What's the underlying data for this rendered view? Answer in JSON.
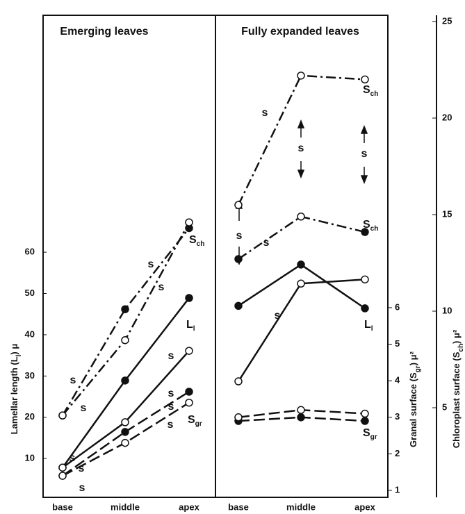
{
  "chart_data": [
    {
      "type": "line",
      "title": "Emerging leaves",
      "categories": [
        "base",
        "middle",
        "apex"
      ],
      "ylim": [
        0.6,
        115.9
      ],
      "yticks": [
        10,
        20,
        30,
        40,
        50,
        60
      ],
      "ylabel": [
        "Lamellar length (L",
        "l",
        ")  μ"
      ],
      "series": [
        {
          "label": [
            "S",
            "ch"
          ],
          "axis": "y3",
          "style": "dashdot",
          "color": "#111",
          "filled": [
            true,
            true,
            true
          ],
          "values": [
            4.6,
            10.1,
            14.3
          ]
        },
        {
          "axis": "y3",
          "style": "dashdot",
          "color": "#111",
          "filled": [
            false,
            false,
            false
          ],
          "values": [
            4.6,
            8.5,
            14.6
          ]
        },
        {
          "label": [
            "L",
            "l"
          ],
          "axis": "y",
          "style": "solid",
          "color": "#111",
          "filled": [
            true,
            true,
            true
          ],
          "values": [
            7.8,
            28.9,
            48.9
          ]
        },
        {
          "axis": "y",
          "style": "solid",
          "color": "#111",
          "filled": [
            false,
            false,
            false
          ],
          "values": [
            7.8,
            18.8,
            36.1
          ]
        },
        {
          "axis": "y2",
          "style": "dashed",
          "color": "#111",
          "filled": [
            true,
            true,
            true
          ],
          "values": [
            1.4,
            2.6,
            3.7
          ]
        },
        {
          "label": [
            "S",
            "gr"
          ],
          "axis": "y2",
          "style": "dashed",
          "color": "#111",
          "filled": [
            false,
            false,
            false
          ],
          "values": [
            1.4,
            2.3,
            3.4
          ]
        }
      ],
      "annotations": [
        "s",
        "s",
        "s",
        "s",
        "s",
        "s",
        "s",
        "s",
        "s",
        "s",
        "s"
      ]
    },
    {
      "type": "line",
      "title": "Fully expanded leaves",
      "categories": [
        "base",
        "middle",
        "apex"
      ],
      "y2lim": [
        0.81,
        13.83
      ],
      "y2ticks": [
        1,
        2,
        3,
        4,
        5,
        6
      ],
      "y2label": [
        "Granal surface (S",
        "gr",
        ")  μ²"
      ],
      "y3lim": [
        0.36,
        25
      ],
      "y3ticks": [
        5,
        10,
        15,
        20,
        25
      ],
      "y3label": [
        "Chloroplast surface (S",
        "ch",
        ")  μ²"
      ],
      "series": [
        {
          "label": [
            "S",
            "ch"
          ],
          "axis": "y3",
          "style": "dashdot",
          "color": "#111",
          "filled": [
            false,
            false,
            false
          ],
          "values": [
            15.5,
            22.2,
            22.0
          ]
        },
        {
          "label": [
            "S",
            "ch"
          ],
          "axis": "y3",
          "style": "dashdot",
          "color": "#111",
          "filled": [
            true,
            false,
            true
          ],
          "values": [
            12.7,
            14.9,
            14.1
          ]
        },
        {
          "label": [
            "L",
            "l"
          ],
          "axis": "y",
          "style": "solid",
          "color": "#111",
          "filled": [
            true,
            true,
            true
          ],
          "values": [
            47.0,
            57.0,
            46.4
          ]
        },
        {
          "axis": "y",
          "style": "solid",
          "color": "#111",
          "filled": [
            false,
            false,
            false
          ],
          "values": [
            28.7,
            52.4,
            53.4
          ]
        },
        {
          "label": [
            "S",
            "gr"
          ],
          "axis": "y2",
          "style": "dashed",
          "color": "#111",
          "filled": [
            true,
            true,
            true
          ],
          "values": [
            2.9,
            3.0,
            2.9
          ]
        },
        {
          "axis": "y2",
          "style": "dashed",
          "color": "#111",
          "filled": [
            false,
            false,
            false
          ],
          "values": [
            3.0,
            3.2,
            3.1
          ]
        }
      ],
      "annotations": [
        "s",
        "s",
        "s",
        "s",
        "s",
        "s"
      ]
    }
  ]
}
